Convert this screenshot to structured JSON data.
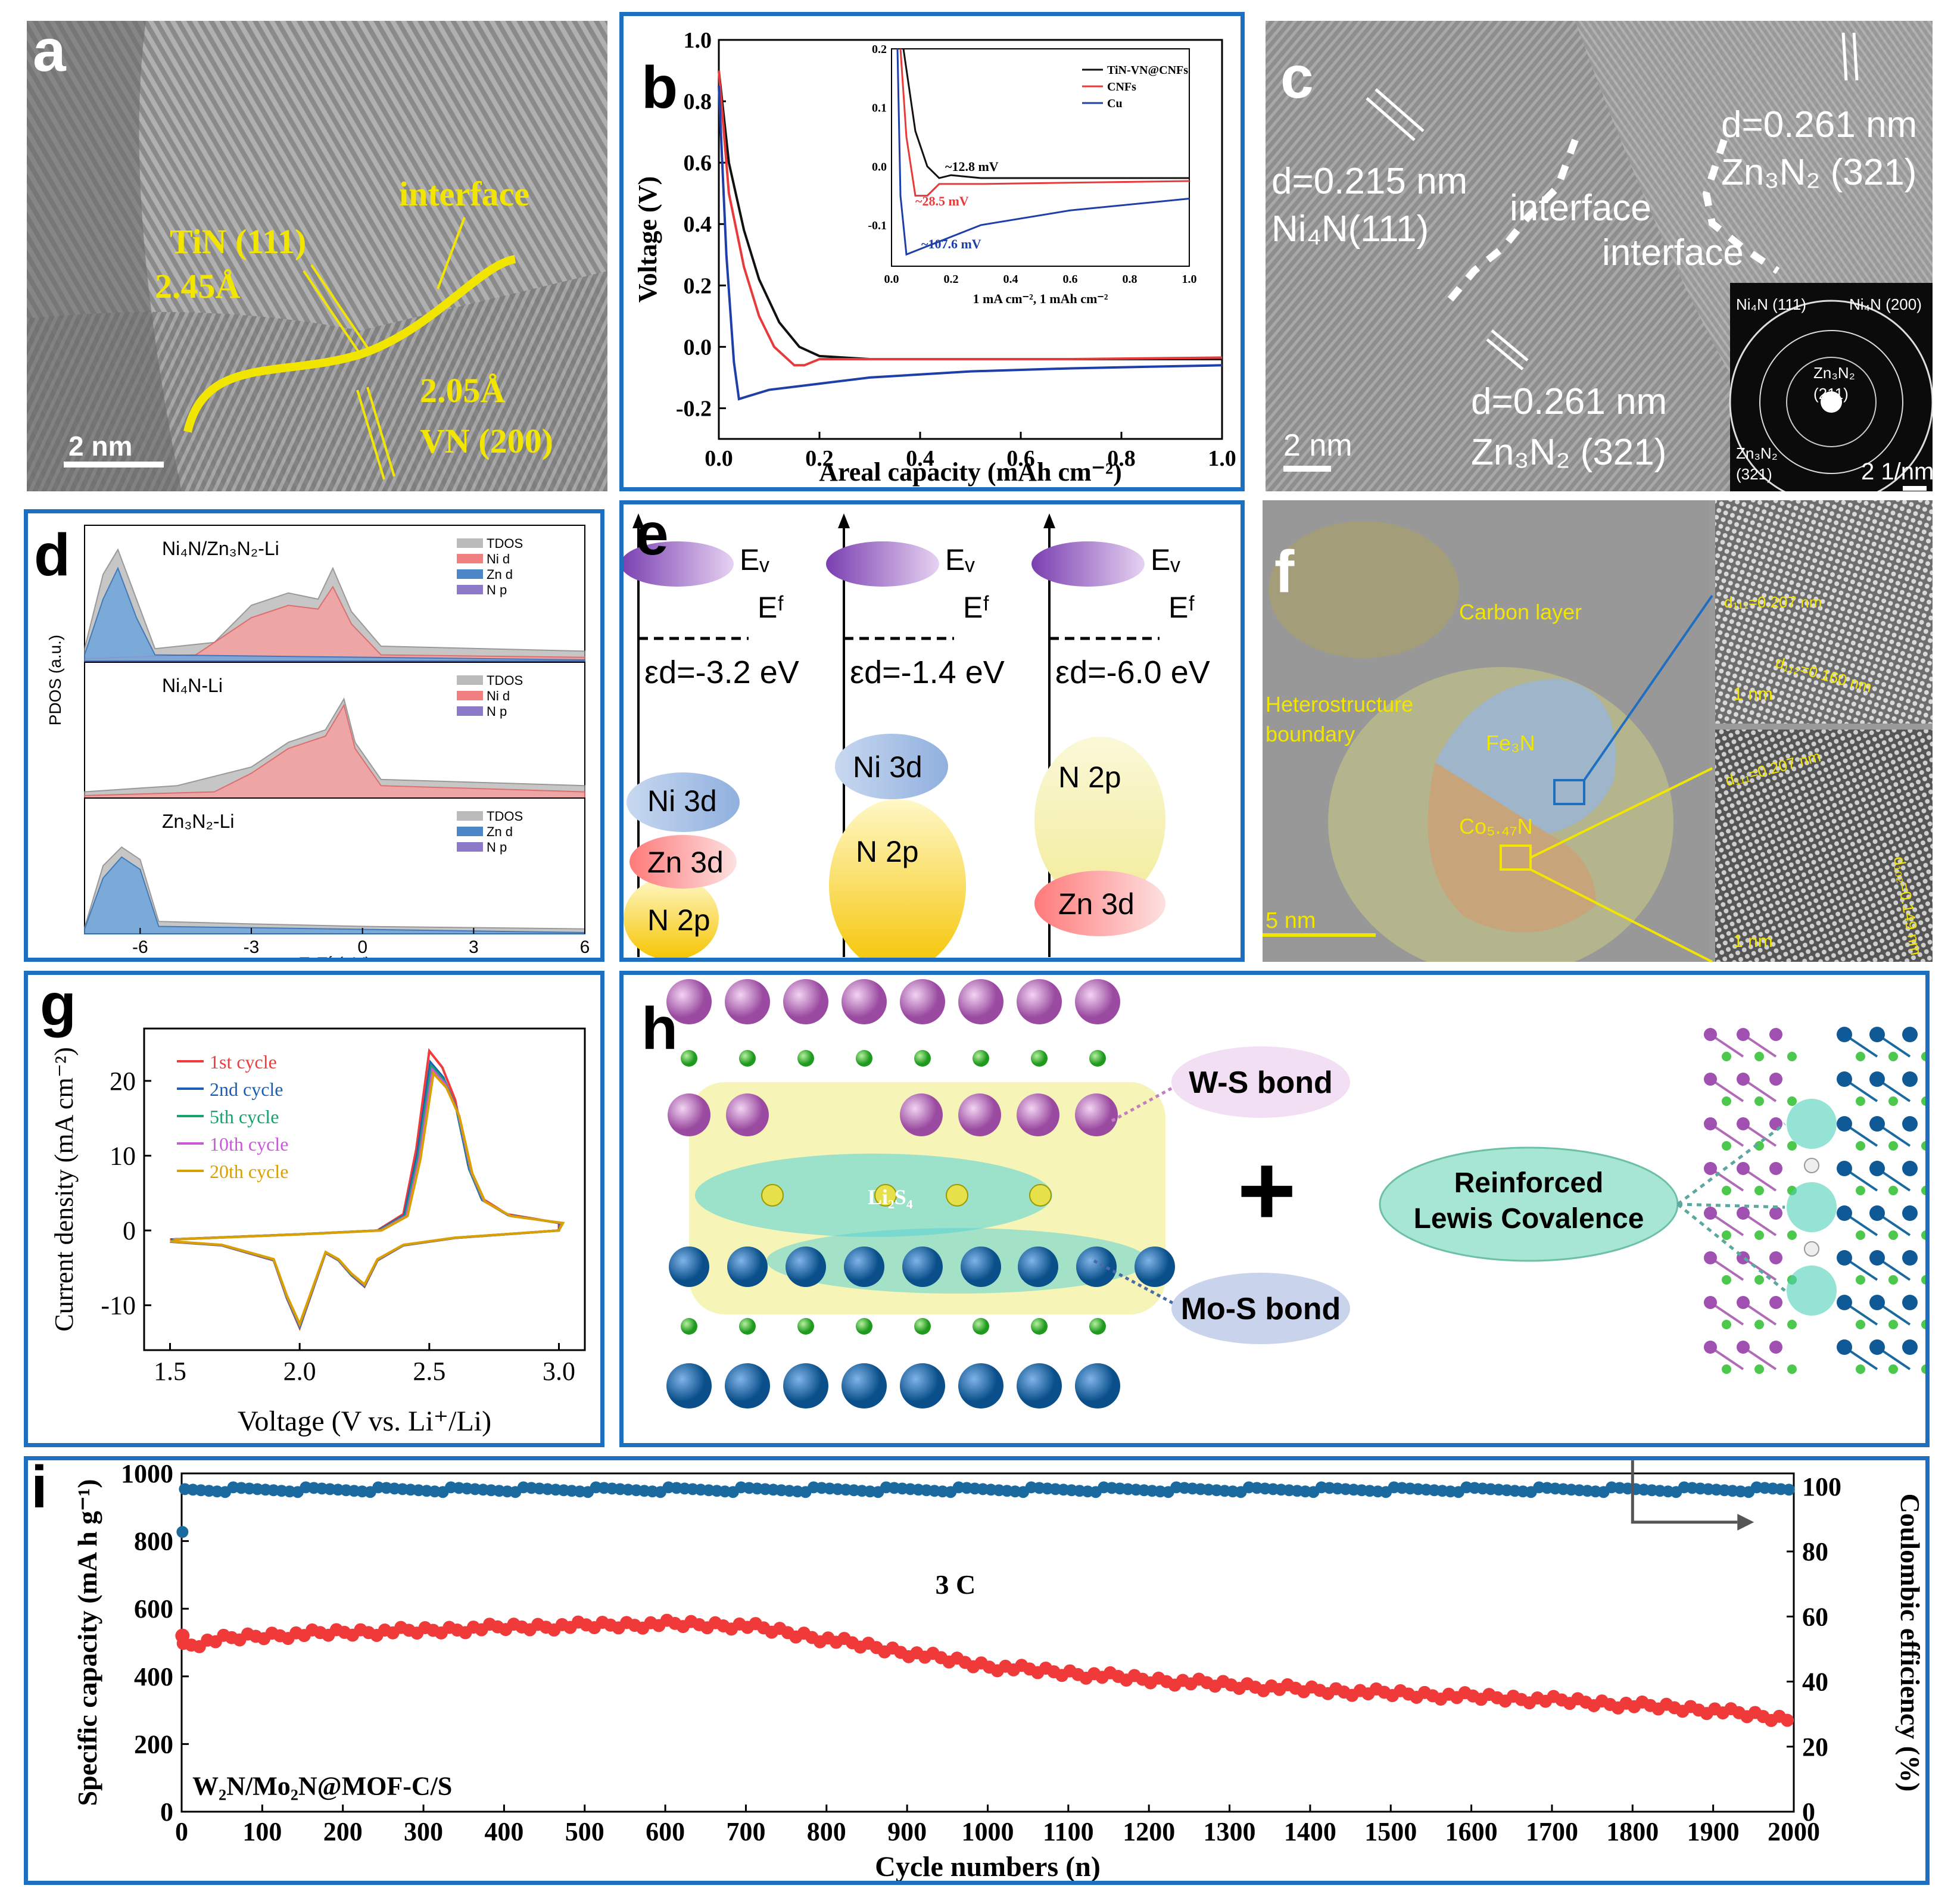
{
  "colors": {
    "frame": "#1f6fc0",
    "yellow": "#f2e600",
    "red": "#ef3b3b",
    "blue": "#1e4fb3",
    "cyan_blue": "#1a6aa0"
  },
  "a": {
    "letter": "a",
    "plane1": "TiN (111)",
    "d1": "2.45Å",
    "interface": "interface",
    "d2": "2.05Å",
    "plane2": "VN (200)",
    "scale": "2 nm"
  },
  "b": {
    "letter": "b",
    "chart_data": {
      "type": "line",
      "title": "",
      "xlabel": "Areal capacity (mAh cm⁻²)",
      "ylabel": "Voltage (V)",
      "xlim": [
        0,
        1.0
      ],
      "ylim": [
        -0.3,
        1.0
      ],
      "xticks": [
        "0.0",
        "0.2",
        "0.4",
        "0.6",
        "0.8",
        "1.0"
      ],
      "yticks": [
        "-0.2",
        "0.0",
        "0.2",
        "0.4",
        "0.6",
        "0.8",
        "1.0"
      ],
      "series": [
        {
          "name": "TiN-VN@CNFs",
          "color": "#111111",
          "x": [
            0,
            0.02,
            0.05,
            0.08,
            0.12,
            0.16,
            0.2,
            0.3,
            0.5,
            0.7,
            1.0
          ],
          "y": [
            0.9,
            0.6,
            0.38,
            0.22,
            0.08,
            0.0,
            -0.03,
            -0.04,
            -0.04,
            -0.04,
            -0.04
          ]
        },
        {
          "name": "CNFs",
          "color": "#e83a3a",
          "x": [
            0,
            0.02,
            0.05,
            0.08,
            0.11,
            0.15,
            0.17,
            0.2,
            0.3,
            0.5,
            0.7,
            1.0
          ],
          "y": [
            0.9,
            0.5,
            0.26,
            0.1,
            0.0,
            -0.06,
            -0.06,
            -0.04,
            -0.04,
            -0.04,
            -0.04,
            -0.035
          ]
        },
        {
          "name": "Cu",
          "color": "#1e3fa8",
          "x": [
            0,
            0.015,
            0.03,
            0.04,
            0.06,
            0.1,
            0.2,
            0.3,
            0.5,
            0.7,
            1.0
          ],
          "y": [
            0.85,
            0.3,
            -0.05,
            -0.17,
            -0.16,
            -0.14,
            -0.12,
            -0.1,
            -0.08,
            -0.07,
            -0.06
          ]
        }
      ],
      "inset": {
        "xlabel": "1 mA cm⁻², 1 mAh cm⁻²",
        "xticks": [
          "0.0",
          "0.2",
          "0.4",
          "0.6",
          "0.8",
          "1.0"
        ],
        "yticks": [
          "0.2",
          "0.1",
          "0.0",
          "-0.1"
        ],
        "ylim": [
          -0.17,
          0.2
        ],
        "legend": [
          "TiN-VN@CNFs",
          "CNFs",
          "Cu"
        ],
        "annotations": [
          "~12.8 mV",
          "~28.5 mV",
          "~107.6 mV"
        ]
      }
    }
  },
  "c": {
    "letter": "c",
    "d_left": "d=0.215 nm",
    "plane_left": "Ni₄N(111)",
    "interface1": "interface",
    "interface2": "interface",
    "d_right": "d=0.261 nm",
    "plane_right": "Zn₃N₂ (321)",
    "d_bottom": "d=0.261 nm",
    "plane_bottom": "Zn₃N₂ (321)",
    "scale": "2 nm",
    "saed_scale": "2 1/nm",
    "saed_labels": [
      "Ni₄N (111)",
      "Ni₄N (200)",
      "Zn₃N₂",
      "(211)",
      "Zn₃N₂",
      "(321)"
    ]
  },
  "d": {
    "letter": "d",
    "ylabel": "PDOS (a.u.)",
    "xlabel": "E-Eᶠ (eV)",
    "xticks": [
      "-6",
      "-3",
      "0",
      "3",
      "6"
    ],
    "chart_data": {
      "type": "area",
      "xlim": [
        -7.5,
        6
      ],
      "panels": [
        {
          "title": "Ni₄N/Zn₃N₂-Li",
          "legend": [
            "TDOS",
            "Ni d",
            "Zn d",
            "N p"
          ]
        },
        {
          "title": "Ni₄N-Li",
          "legend": [
            "TDOS",
            "Ni d",
            "N p"
          ]
        },
        {
          "title": "Zn₃N₂-Li",
          "legend": [
            "TDOS",
            "Zn d",
            "N p"
          ]
        }
      ]
    }
  },
  "e": {
    "letter": "e",
    "columns": [
      {
        "ev": "Eᵥ",
        "ef": "Eᶠ",
        "eps": "εd=-3.2 eV",
        "orb1": "Ni 3d",
        "orb2": "Zn 3d",
        "orb3": "N 2p"
      },
      {
        "ev": "Eᵥ",
        "ef": "Eᶠ",
        "eps": "εd=-1.4 eV",
        "orb1": "Ni 3d",
        "orb2": "N 2p"
      },
      {
        "ev": "Eᵥ",
        "ef": "Eᶠ",
        "eps": "εd=-6.0 eV",
        "orb1": "N 2p",
        "orb2": "Zn 3d"
      }
    ]
  },
  "f": {
    "letter": "f",
    "carbon": "Carbon layer",
    "hetero1": "Heterostructure",
    "hetero2": "boundary",
    "fe3n": "Fe₃N",
    "co": "Co₅.₄₇N",
    "scale": "5 nm",
    "inset1_d1": "d₁₁₁=0.207 nm",
    "inset1_d2": "d₁₁₂=0.160 nm",
    "inset1_scale": "1 nm",
    "inset2_d1": "d₁₁₁=0.207 nm",
    "inset2_d2": "d₁₀₂=0.149 nm",
    "inset2_scale": "1 nm"
  },
  "g": {
    "letter": "g",
    "chart_data": {
      "type": "line",
      "xlabel": "Voltage (V vs. Li⁺/Li)",
      "ylabel": "Current density (mA cm⁻²)",
      "xlim": [
        1.4,
        3.1
      ],
      "ylim": [
        -16,
        27
      ],
      "xticks": [
        "1.5",
        "2.0",
        "2.5",
        "3.0"
      ],
      "yticks": [
        "-10",
        "0",
        "10",
        "20"
      ],
      "series": [
        {
          "name": "1st cycle",
          "color": "#ef3b3b",
          "peak": 24
        },
        {
          "name": "2nd cycle",
          "color": "#1a5fb4",
          "peak": 22.5
        },
        {
          "name": "5th cycle",
          "color": "#17a36b",
          "peak": 22
        },
        {
          "name": "10th cycle",
          "color": "#c85ad8",
          "peak": 21.5
        },
        {
          "name": "20th cycle",
          "color": "#d9a000",
          "peak": 21
        }
      ]
    }
  },
  "h": {
    "letter": "h",
    "mol": "Li₂S₄",
    "ws": "W-S bond",
    "mos": "Mo-S bond",
    "plus": "+",
    "rlc1": "Reinforced",
    "rlc2": "Lewis Covalence"
  },
  "i": {
    "letter": "i",
    "chart_data": {
      "type": "scatter",
      "xlabel": "Cycle numbers (n)",
      "ylabel": "Specific capacity (mA h g⁻¹)",
      "y2label": "Coulombic efficiency (%)",
      "xlim": [
        0,
        2000
      ],
      "ylim": [
        0,
        1000
      ],
      "y2lim": [
        0,
        104
      ],
      "xticks": [
        "0",
        "100",
        "200",
        "300",
        "400",
        "500",
        "600",
        "700",
        "800",
        "900",
        "1000",
        "1100",
        "1200",
        "1300",
        "1400",
        "1500",
        "1600",
        "1700",
        "1800",
        "1900",
        "2000"
      ],
      "yticks": [
        "0",
        "200",
        "400",
        "600",
        "800",
        "1000"
      ],
      "y2ticks": [
        "0",
        "20",
        "40",
        "60",
        "80",
        "100"
      ],
      "rate": "3 C",
      "sample": "W₂N/Mo₂N@MOF-C/S",
      "capacity": {
        "color": "#f03a3a",
        "x": [
          0,
          50,
          100,
          200,
          300,
          400,
          500,
          600,
          700,
          800,
          900,
          1000,
          1100,
          1200,
          1300,
          1400,
          1500,
          1600,
          1700,
          1800,
          1900,
          2000
        ],
        "y": [
          490,
          510,
          520,
          530,
          535,
          545,
          550,
          555,
          550,
          510,
          470,
          430,
          410,
          390,
          375,
          360,
          350,
          340,
          330,
          315,
          300,
          270
        ]
      },
      "efficiency": {
        "color": "#1a6aa0",
        "first": 86,
        "value": 99
      }
    }
  }
}
